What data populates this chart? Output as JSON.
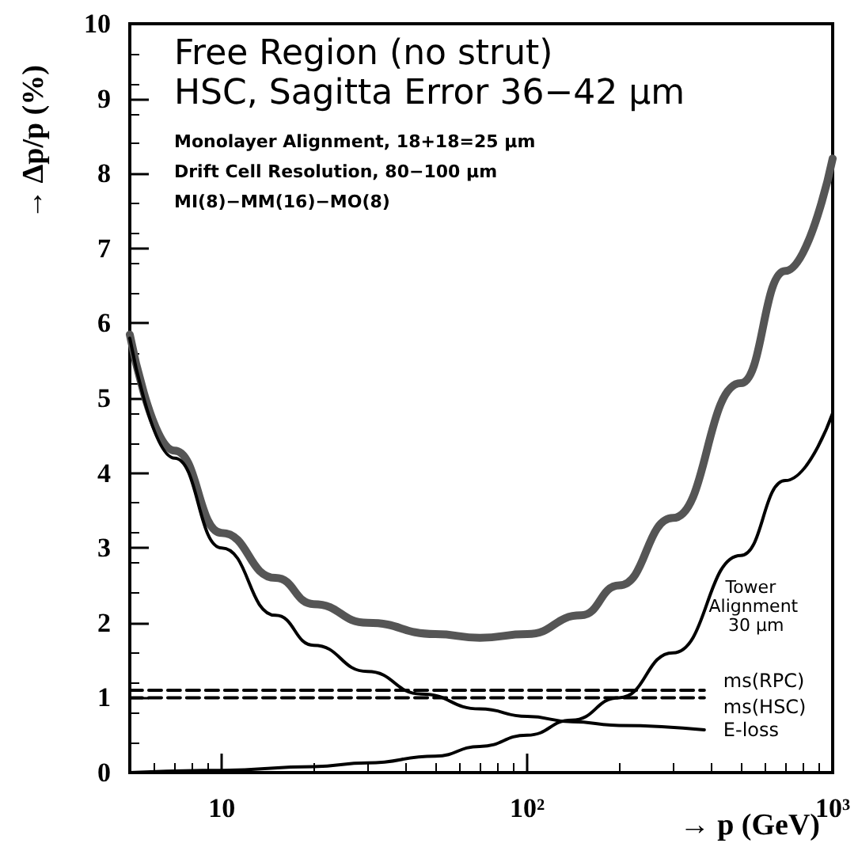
{
  "chart_data": {
    "type": "line",
    "title": "Free Region (no strut)",
    "subtitle": "HSC, Sagitta Error 36−42 μm",
    "annotations": [
      "Monolayer Alignment, 18+18=25 μm",
      "Drift Cell Resolution, 80−100 μm",
      "MI(8)−MM(16)−MO(8)"
    ],
    "xlabel": "→ p (GeV)",
    "ylabel": "→ Δp/p (%)",
    "log": "x",
    "xlim": [
      5,
      1000
    ],
    "xticks": [
      10,
      {
        "value": 100,
        "label": "10²"
      },
      {
        "value": 1000,
        "label": "10³"
      }
    ],
    "ylim": [
      0,
      10
    ],
    "yticks": [
      0,
      1,
      2,
      3,
      4,
      5,
      6,
      7,
      8,
      9,
      10
    ],
    "grid": false,
    "legend": false,
    "marker": "none",
    "series": [
      {
        "color": "#555555",
        "line_style": "solid",
        "x": [
          5,
          7,
          10,
          15,
          20,
          30,
          50,
          70,
          100,
          150,
          200,
          300,
          500,
          700,
          1000
        ],
        "values": [
          5.85,
          4.3,
          3.2,
          2.6,
          2.25,
          2.0,
          1.85,
          1.8,
          1.85,
          2.1,
          2.5,
          3.4,
          5.2,
          6.7,
          8.2
        ]
      },
      {
        "name": "E-loss",
        "color": "#000000",
        "line_style": "solid",
        "x": [
          5,
          7,
          10,
          15,
          20,
          30,
          45,
          70,
          100,
          140,
          200,
          380
        ],
        "values": [
          5.8,
          4.2,
          3.0,
          2.1,
          1.7,
          1.35,
          1.05,
          0.85,
          0.75,
          0.68,
          0.63,
          0.57
        ]
      },
      {
        "name": "Tower Alignment 30 μm",
        "color": "#000000",
        "line_style": "solid",
        "x": [
          5,
          10,
          20,
          30,
          50,
          70,
          100,
          140,
          200,
          300,
          500,
          700,
          1000
        ],
        "values": [
          0,
          0.03,
          0.08,
          0.13,
          0.22,
          0.35,
          0.5,
          0.7,
          1.0,
          1.6,
          2.9,
          3.9,
          4.8
        ]
      },
      {
        "name": "ms(RPC)",
        "color": "#000000",
        "line_style": "dashed",
        "x": [
          5,
          380
        ],
        "values": [
          1.1,
          1.1
        ]
      },
      {
        "name": "ms(HSC)",
        "color": "#000000",
        "line_style": "dashed",
        "x": [
          5,
          380
        ],
        "values": [
          1.0,
          1.0
        ]
      }
    ]
  }
}
